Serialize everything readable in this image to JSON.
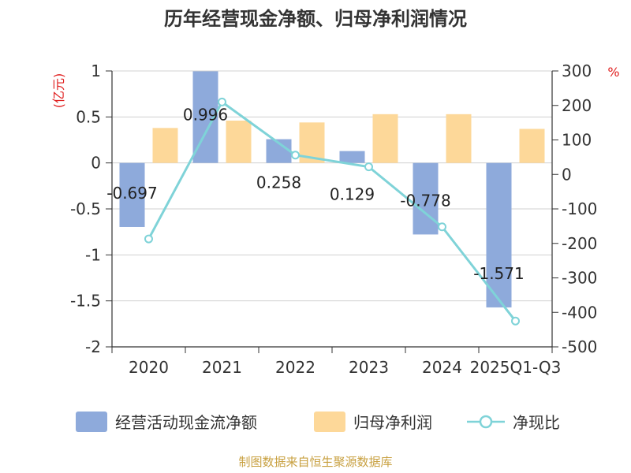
{
  "title": "历年经营现金净额、归母净利润情况",
  "source": "制图数据来自恒生聚源数据库",
  "chart_data": {
    "type": "bar",
    "categories": [
      "2020",
      "2021",
      "2022",
      "2023",
      "2024",
      "2025Q1-Q3"
    ],
    "y_left": {
      "unit": "(亿元)",
      "ylim": [
        -2,
        1
      ],
      "ticks": [
        "1",
        "0.5",
        "0",
        "-0.5",
        "-1",
        "-1.5",
        "-2"
      ]
    },
    "y_right": {
      "unit": "%",
      "ylim": [
        -500,
        300
      ],
      "ticks": [
        "300",
        "200",
        "100",
        "0",
        "-100",
        "-200",
        "-300",
        "-400",
        "-500"
      ]
    },
    "series": [
      {
        "name": "经营活动现金流净额",
        "type": "bar",
        "axis": "left",
        "color": "#8eaadb",
        "values": [
          -0.697,
          0.996,
          0.258,
          0.129,
          -0.778,
          -1.571
        ],
        "labels": [
          "-0.697",
          "0.996",
          "0.258",
          "0.129",
          "-0.778",
          "-1.571"
        ]
      },
      {
        "name": "归母净利润",
        "type": "bar",
        "axis": "left",
        "color": "#fdd899",
        "values": [
          0.38,
          0.46,
          0.44,
          0.53,
          0.53,
          0.37
        ]
      },
      {
        "name": "净现比",
        "type": "line",
        "axis": "right",
        "color": "#7fd3d8",
        "values": [
          -187,
          210,
          56,
          22,
          -152,
          -425
        ]
      }
    ],
    "grid": true,
    "legend": "bottom"
  }
}
